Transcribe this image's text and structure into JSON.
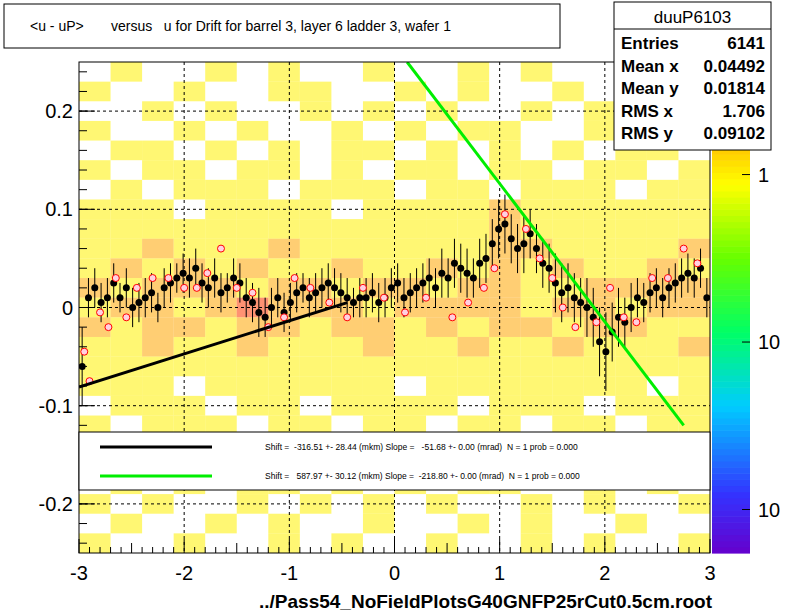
{
  "chart_data": {
    "type": "profile",
    "title": "<u - uP>       versus   u for Drift for barrel 3, layer 6 ladder 3, wafer 1",
    "x_label": "../Pass54_NoFieldPlotsG40GNFP25rCut0.5cm.root",
    "xlim": [
      -3,
      3
    ],
    "ylim": [
      -0.25,
      0.25
    ],
    "xticks": [
      -3,
      -2,
      -1,
      0,
      1,
      2,
      3
    ],
    "yticks": [
      -0.2,
      -0.1,
      0,
      0.1,
      0.2
    ],
    "grid": true,
    "legend": "bottom",
    "stats": {
      "title": "duuP6103",
      "rows": [
        {
          "label": "Entries",
          "value": 6141
        },
        {
          "label": "Mean x",
          "value": 0.04492
        },
        {
          "label": "Mean y",
          "value": 0.01814
        },
        {
          "label": "RMS x",
          "value": 1.706
        },
        {
          "label": "RMS y",
          "value": 0.09102
        }
      ]
    },
    "colorbar": {
      "zlim": [
        0.0055,
        4.7
      ],
      "log": true,
      "ticks": [
        {
          "value": 1,
          "label": "1"
        },
        {
          "value": 0.1,
          "label": "10"
        },
        {
          "value": 0.01,
          "label": "10"
        }
      ]
    },
    "heatmap": {
      "x_edges": [
        -3,
        -2.7,
        -2.4,
        -2.1,
        -1.8,
        -1.5,
        -1.2,
        -0.9,
        -0.6,
        -0.3,
        0,
        0.3,
        0.6,
        0.9,
        1.2,
        1.5,
        1.8,
        2.1,
        2.4,
        2.7,
        3
      ],
      "y_edges": [
        0.25,
        0.23,
        0.21,
        0.19,
        0.17,
        0.15,
        0.13,
        0.11,
        0.09,
        0.07,
        0.05,
        0.03,
        0.01,
        -0.01,
        -0.03,
        -0.05,
        -0.07,
        -0.09,
        -0.11,
        -0.13,
        -0.15,
        -0.17,
        -0.19,
        -0.21,
        -0.23,
        -0.25
      ],
      "values": [
        [
          0,
          1,
          0,
          0,
          1,
          0,
          1,
          0,
          0,
          1,
          0,
          0,
          1,
          0,
          1,
          0,
          0,
          1,
          0,
          0
        ],
        [
          1,
          0,
          0,
          1,
          0,
          0,
          1,
          1,
          0,
          0,
          1,
          0,
          1,
          0,
          0,
          1,
          0,
          0,
          1,
          0
        ],
        [
          0,
          0,
          1,
          0,
          1,
          0,
          0,
          1,
          0,
          1,
          0,
          1,
          0,
          0,
          1,
          0,
          1,
          0,
          0,
          1
        ],
        [
          1,
          0,
          0,
          1,
          0,
          1,
          0,
          0,
          1,
          0,
          1,
          0,
          1,
          1,
          0,
          0,
          1,
          0,
          1,
          0
        ],
        [
          0,
          1,
          1,
          0,
          1,
          0,
          1,
          0,
          1,
          1,
          0,
          1,
          0,
          1,
          0,
          1,
          0,
          1,
          1,
          0
        ],
        [
          1,
          0,
          1,
          1,
          0,
          1,
          1,
          0,
          1,
          0,
          1,
          1,
          0,
          1,
          1,
          0,
          1,
          1,
          0,
          1
        ],
        [
          0,
          1,
          0,
          1,
          1,
          1,
          0,
          1,
          1,
          1,
          0,
          1,
          1,
          0,
          1,
          1,
          1,
          0,
          1,
          1
        ],
        [
          1,
          1,
          1,
          0,
          1,
          1,
          1,
          1,
          0,
          1,
          1,
          1,
          1,
          2,
          1,
          1,
          1,
          1,
          1,
          1
        ],
        [
          1,
          1,
          1,
          1,
          1,
          1,
          1,
          1,
          1,
          1,
          1,
          1,
          1,
          2,
          1,
          1,
          1,
          1,
          1,
          1
        ],
        [
          1,
          1,
          2,
          1,
          1,
          1,
          2,
          1,
          1,
          1,
          1,
          1,
          1,
          2,
          2,
          1,
          1,
          1,
          1,
          2
        ],
        [
          1,
          2,
          1,
          2,
          1,
          2,
          1,
          1,
          2,
          1,
          1,
          2,
          1,
          2,
          1,
          2,
          1,
          1,
          2,
          1
        ],
        [
          2,
          1,
          2,
          2,
          2,
          1,
          2,
          2,
          1,
          2,
          2,
          1,
          2,
          2,
          1,
          1,
          2,
          2,
          2,
          2
        ],
        [
          1,
          2,
          2,
          1,
          2,
          3.5,
          2,
          2,
          2,
          1,
          2,
          2,
          2,
          2,
          1,
          2,
          2,
          1,
          2,
          2
        ],
        [
          2,
          1,
          2,
          2,
          1,
          2,
          2,
          1,
          2,
          2,
          1,
          2,
          1,
          2,
          2,
          1,
          2,
          2,
          1,
          1
        ],
        [
          1,
          1,
          2,
          1,
          1,
          2,
          1,
          1,
          1,
          2,
          1,
          1,
          2,
          1,
          1,
          2,
          1,
          1,
          1,
          2
        ],
        [
          1,
          1,
          1,
          1,
          1,
          1,
          1,
          1,
          1,
          1,
          1,
          1,
          1,
          1,
          1,
          1,
          1,
          1,
          1,
          1
        ],
        [
          1,
          1,
          1,
          0,
          1,
          1,
          1,
          1,
          1,
          1,
          0,
          1,
          1,
          1,
          1,
          1,
          1,
          1,
          0,
          1
        ],
        [
          0,
          1,
          1,
          1,
          0,
          1,
          1,
          0,
          1,
          1,
          1,
          1,
          0,
          1,
          1,
          1,
          0,
          1,
          1,
          1
        ],
        [
          1,
          0,
          1,
          1,
          1,
          0,
          1,
          1,
          0,
          1,
          1,
          0,
          1,
          1,
          0,
          1,
          1,
          0,
          1,
          1
        ],
        [
          0,
          1,
          0,
          1,
          1,
          0,
          1,
          0,
          1,
          1,
          0,
          1,
          0,
          1,
          1,
          0,
          1,
          1,
          0,
          1
        ],
        [
          1,
          0,
          1,
          0,
          1,
          1,
          0,
          1,
          0,
          1,
          1,
          0,
          1,
          0,
          1,
          1,
          0,
          1,
          0,
          0
        ],
        [
          0,
          1,
          0,
          1,
          0,
          1,
          1,
          0,
          1,
          0,
          1,
          0,
          1,
          1,
          0,
          0,
          1,
          0,
          1,
          0
        ],
        [
          1,
          0,
          1,
          0,
          0,
          1,
          0,
          1,
          0,
          1,
          0,
          1,
          0,
          0,
          1,
          0,
          1,
          0,
          0,
          1
        ],
        [
          0,
          1,
          0,
          0,
          1,
          0,
          1,
          0,
          0,
          1,
          0,
          0,
          1,
          0,
          1,
          0,
          0,
          1,
          0,
          0
        ],
        [
          1,
          0,
          0,
          1,
          0,
          0,
          1,
          0,
          1,
          0,
          0,
          1,
          0,
          0,
          1,
          0,
          1,
          0,
          0,
          1
        ]
      ]
    },
    "series": [
      {
        "type": "scatter",
        "marker": "circle",
        "color": "#000000",
        "x": [
          -2.97,
          -2.91,
          -2.85,
          -2.79,
          -2.73,
          -2.67,
          -2.61,
          -2.55,
          -2.49,
          -2.43,
          -2.37,
          -2.31,
          -2.25,
          -2.19,
          -2.13,
          -2.07,
          -2.01,
          -1.95,
          -1.89,
          -1.83,
          -1.77,
          -1.71,
          -1.65,
          -1.59,
          -1.53,
          -1.47,
          -1.41,
          -1.35,
          -1.29,
          -1.23,
          -1.17,
          -1.11,
          -1.05,
          -0.99,
          -0.93,
          -0.87,
          -0.81,
          -0.75,
          -0.69,
          -0.63,
          -0.57,
          -0.51,
          -0.45,
          -0.39,
          -0.33,
          -0.27,
          -0.21,
          -0.15,
          -0.09,
          -0.03,
          0.03,
          0.09,
          0.15,
          0.21,
          0.27,
          0.33,
          0.39,
          0.45,
          0.51,
          0.57,
          0.63,
          0.69,
          0.75,
          0.81,
          0.87,
          0.93,
          0.99,
          1.05,
          1.11,
          1.17,
          1.23,
          1.29,
          1.35,
          1.41,
          1.47,
          1.53,
          1.59,
          1.65,
          1.71,
          1.77,
          1.83,
          1.89,
          1.95,
          2.01,
          2.07,
          2.13,
          2.19,
          2.25,
          2.31,
          2.37,
          2.43,
          2.49,
          2.55,
          2.61,
          2.67,
          2.73,
          2.79,
          2.85,
          2.91,
          2.97
        ],
        "values": [
          -0.06,
          0.01,
          0.02,
          0.005,
          0.01,
          0.025,
          0.01,
          0.02,
          0.0,
          0.005,
          0.01,
          0.015,
          0.0,
          0.02,
          0.025,
          0.03,
          0.035,
          0.03,
          0.04,
          0.025,
          0.02,
          0.03,
          0.015,
          0.02,
          0.03,
          0.025,
          0.01,
          0.005,
          -0.005,
          -0.01,
          0.0,
          0.01,
          -0.005,
          0.005,
          0.015,
          0.02,
          0.01,
          0.015,
          0.02,
          0.025,
          0.02,
          0.015,
          0.01,
          0.005,
          0.01,
          0.01,
          0.015,
          0.005,
          0.01,
          0.02,
          0.025,
          0.01,
          0.015,
          0.02,
          0.025,
          0.03,
          0.02,
          0.035,
          0.03,
          0.045,
          0.04,
          0.035,
          0.03,
          0.045,
          0.05,
          0.065,
          0.08,
          0.085,
          0.07,
          0.06,
          0.065,
          0.075,
          0.06,
          0.045,
          0.04,
          0.025,
          0.015,
          0.02,
          0.01,
          0.005,
          0.0,
          -0.01,
          -0.035,
          -0.045,
          -0.025,
          -0.01,
          -0.015,
          0.0,
          0.01,
          0.005,
          0.015,
          0.02,
          0.01,
          0.02,
          0.025,
          0.03,
          0.035,
          0.03,
          0.04,
          0.01
        ],
        "errors": [
          0.04,
          0.02,
          0.02,
          0.02,
          0.02,
          0.02,
          0.015,
          0.02,
          0.02,
          0.02,
          0.02,
          0.02,
          0.015,
          0.02,
          0.02,
          0.015,
          0.02,
          0.02,
          0.02,
          0.02,
          0.02,
          0.02,
          0.02,
          0.015,
          0.02,
          0.02,
          0.02,
          0.02,
          0.025,
          0.02,
          0.02,
          0.02,
          0.02,
          0.02,
          0.02,
          0.015,
          0.02,
          0.02,
          0.02,
          0.02,
          0.02,
          0.02,
          0.02,
          0.015,
          0.02,
          0.02,
          0.02,
          0.02,
          0.02,
          0.02,
          0.02,
          0.02,
          0.02,
          0.02,
          0.02,
          0.02,
          0.02,
          0.025,
          0.02,
          0.025,
          0.025,
          0.025,
          0.02,
          0.025,
          0.025,
          0.025,
          0.03,
          0.03,
          0.025,
          0.025,
          0.03,
          0.025,
          0.025,
          0.025,
          0.025,
          0.03,
          0.03,
          0.025,
          0.025,
          0.025,
          0.03,
          0.03,
          0.035,
          0.04,
          0.03,
          0.03,
          0.025,
          0.025,
          0.02,
          0.02,
          0.02,
          0.02,
          0.02,
          0.02,
          0.02,
          0.02,
          0.02,
          0.02,
          0.02,
          0.02
        ]
      },
      {
        "type": "scatter",
        "marker": "open_circle",
        "color": "#ff0000",
        "x": [
          -2.95,
          -2.9,
          -2.8,
          -2.72,
          -2.65,
          -2.55,
          -2.45,
          -2.3,
          -2.15,
          -2.0,
          -1.88,
          -1.78,
          -1.65,
          -1.5,
          -1.35,
          -1.2,
          -1.05,
          -0.95,
          -0.8,
          -0.62,
          -0.45,
          -0.3,
          -0.1,
          0.1,
          0.3,
          0.55,
          0.7,
          0.85,
          0.95,
          1.05,
          1.25,
          1.38,
          1.5,
          1.6,
          1.72,
          1.92,
          2.05,
          2.18,
          2.3,
          2.45,
          2.6,
          2.75,
          2.88
        ],
        "values": [
          -0.045,
          -0.075,
          -0.005,
          -0.02,
          0.03,
          -0.01,
          0.02,
          0.03,
          0.03,
          0.02,
          0.02,
          0.035,
          0.06,
          0.02,
          0.015,
          -0.02,
          -0.01,
          0.03,
          0.02,
          0.005,
          -0.01,
          0.02,
          0.01,
          -0.005,
          0.01,
          -0.01,
          0.005,
          0.02,
          0.04,
          0.095,
          0.08,
          0.05,
          0.03,
          0.0,
          -0.02,
          -0.015,
          0.02,
          -0.01,
          -0.015,
          0.03,
          0.03,
          0.06,
          0.045
        ]
      },
      {
        "type": "line",
        "name": "Shift =  -316.51 +- 28.44 (mkm) Slope =   -51.68 +- 0.00 (mrad)  N = 1 prob = 0.000",
        "color": "#000000",
        "x": [
          -3,
          -0.45
        ],
        "values": [
          -0.081,
          0.005
        ]
      },
      {
        "type": "line",
        "name": "Shift =   587.97 +- 30.12 (mkm) Slope =  -218.80 +- 0.00 (mrad)  N = 1 prob = 0.000",
        "color": "#00ee00",
        "x": [
          0.12,
          2.75
        ],
        "values": [
          0.25,
          -0.12
        ]
      }
    ]
  }
}
